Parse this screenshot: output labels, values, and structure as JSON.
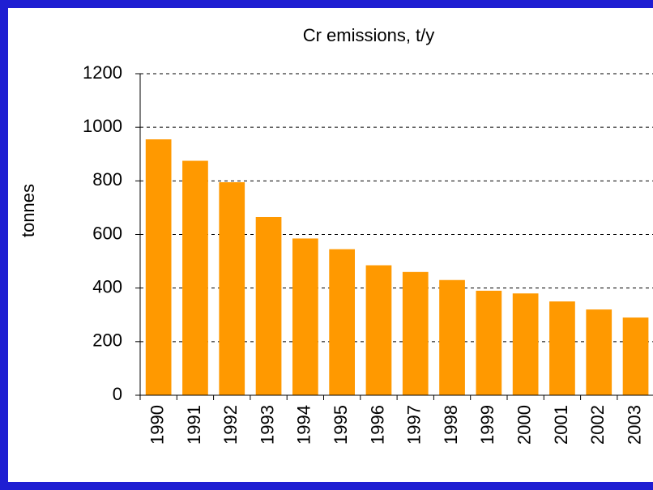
{
  "chart_data": {
    "type": "bar",
    "title": "Cr emissions, t/y",
    "ylabel": "tonnes",
    "categories": [
      "1990",
      "1991",
      "1992",
      "1993",
      "1994",
      "1995",
      "1996",
      "1997",
      "1998",
      "1999",
      "2000",
      "2001",
      "2002",
      "2003"
    ],
    "values": [
      955,
      875,
      795,
      665,
      585,
      545,
      485,
      460,
      430,
      390,
      380,
      350,
      320,
      290
    ],
    "color": "#ff9900",
    "ylim": [
      0,
      1200
    ],
    "yticks": [
      0,
      200,
      400,
      600,
      800,
      1000,
      1200
    ],
    "grid": true
  }
}
